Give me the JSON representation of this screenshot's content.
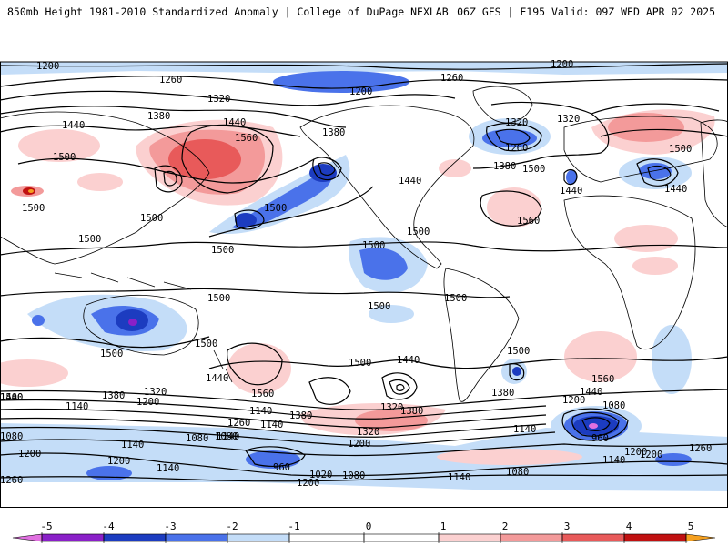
{
  "header": {
    "left_title": "850mb Height 1981-2010 Standardized Anomaly | College of DuPage NEXLAB",
    "right_title": "06Z GFS | F195 Valid: 09Z WED APR 02 2025"
  },
  "colors": {
    "neg5": "#e070e0",
    "neg4": "#8a20c8",
    "neg3": "#1c3cc0",
    "neg2": "#4a72ea",
    "neg1": "#c4ddf8",
    "pos1": "#fbd0d0",
    "pos2": "#f39a9a",
    "pos3": "#e85a5a",
    "pos4": "#c01010",
    "pos5": "#f5a020",
    "land": "#000000"
  },
  "legend": {
    "ticks": [
      "-5",
      "-4",
      "-3",
      "-2",
      "-1",
      "0",
      "1",
      "2",
      "3",
      "4",
      "5"
    ],
    "values": [
      -5,
      -4,
      -3,
      -2,
      -1,
      0,
      1,
      2,
      3,
      4,
      5
    ]
  },
  "contour_labels": [
    {
      "id": "c1200-nw",
      "text": "1200"
    },
    {
      "id": "c1200-ne",
      "text": "1200"
    },
    {
      "id": "c1260-nw",
      "text": "1260"
    },
    {
      "id": "c1320-nw",
      "text": "1320"
    },
    {
      "id": "c1380-nw",
      "text": "1380"
    },
    {
      "id": "c1440-nw",
      "text": "1440"
    },
    {
      "id": "c1440-w",
      "text": "1440"
    },
    {
      "id": "c1500-w",
      "text": "1500"
    },
    {
      "id": "c1560-np",
      "text": "1560"
    },
    {
      "id": "c1380-np",
      "text": "1380"
    },
    {
      "id": "c1200-arctic",
      "text": "1200"
    },
    {
      "id": "c1260-arctic",
      "text": "1260"
    },
    {
      "id": "c1320-eu",
      "text": "1320"
    },
    {
      "id": "c1260-eu",
      "text": "1260"
    },
    {
      "id": "c1320-ne2",
      "text": "1320"
    },
    {
      "id": "c1380-us",
      "text": "1380"
    },
    {
      "id": "c1500-us",
      "text": "1500"
    },
    {
      "id": "c1440-atl",
      "text": "1440"
    },
    {
      "id": "c1500-asia",
      "text": "1500"
    },
    {
      "id": "c1440-asia",
      "text": "1440"
    },
    {
      "id": "c1440-usa",
      "text": "1440"
    },
    {
      "id": "c1500-gulf",
      "text": "1500"
    },
    {
      "id": "c1560-atl",
      "text": "1560"
    },
    {
      "id": "c1500-pac",
      "text": "1500"
    },
    {
      "id": "c1500-china",
      "text": "1500"
    },
    {
      "id": "c1500-wpac",
      "text": "1500"
    },
    {
      "id": "c1500-ind",
      "text": "1500"
    },
    {
      "id": "c1500-tpac",
      "text": "1500"
    },
    {
      "id": "c1500-epac",
      "text": "1500"
    },
    {
      "id": "c1500-ca",
      "text": "1500"
    },
    {
      "id": "c1500-sam",
      "text": "1500"
    },
    {
      "id": "c1500-aus",
      "text": "1500"
    },
    {
      "id": "c1500-aus2",
      "text": "1500"
    },
    {
      "id": "c1500-ind2",
      "text": "1500"
    },
    {
      "id": "c1500-satl",
      "text": "1500"
    },
    {
      "id": "c1500-spac",
      "text": "1500"
    },
    {
      "id": "c1440-spac",
      "text": "1440"
    },
    {
      "id": "c1440-spac2",
      "text": "1440"
    },
    {
      "id": "c1380-spac",
      "text": "1380"
    },
    {
      "id": "c1440-tas",
      "text": "1440"
    },
    {
      "id": "c1560-tas",
      "text": "1560"
    },
    {
      "id": "c1560-satl",
      "text": "1560"
    },
    {
      "id": "c1440-satl",
      "text": "1440"
    },
    {
      "id": "c1380-satl",
      "text": "1380"
    },
    {
      "id": "c1320-satl",
      "text": "1320"
    },
    {
      "id": "c1200-satl",
      "text": "1200"
    },
    {
      "id": "c1140-satl",
      "text": "1140"
    },
    {
      "id": "c1080-satl",
      "text": "1080"
    },
    {
      "id": "c960-satl",
      "text": "960"
    },
    {
      "id": "c1200-satl2",
      "text": "1200"
    },
    {
      "id": "c1260-satl",
      "text": "1260"
    },
    {
      "id": "c1140-satl2",
      "text": "1140"
    },
    {
      "id": "c1080-satl2",
      "text": "1080"
    },
    {
      "id": "c1140-sam",
      "text": "1140"
    },
    {
      "id": "c1380-so",
      "text": "1380"
    },
    {
      "id": "c1320-so",
      "text": "1320"
    },
    {
      "id": "c1260-so",
      "text": "1260"
    },
    {
      "id": "c1200-so",
      "text": "1200"
    },
    {
      "id": "c1140-so",
      "text": "1140"
    },
    {
      "id": "c1500-sw",
      "text": "1500"
    },
    {
      "id": "c1380-sw",
      "text": "1380"
    },
    {
      "id": "c1320-sw",
      "text": "1320"
    },
    {
      "id": "c1200-sw",
      "text": "1200"
    },
    {
      "id": "c1140-sw",
      "text": "1140"
    },
    {
      "id": "c1080-sw",
      "text": "1080"
    },
    {
      "id": "c1200-sw2",
      "text": "1200"
    },
    {
      "id": "c1260-sw",
      "text": "1260"
    },
    {
      "id": "c1140-sw2",
      "text": "1140"
    },
    {
      "id": "c1080-sw2",
      "text": "1080"
    },
    {
      "id": "c1200-sw3",
      "text": "1200"
    },
    {
      "id": "c1140-sw3",
      "text": "1140"
    },
    {
      "id": "c960-sw",
      "text": "960"
    },
    {
      "id": "c1020-sw",
      "text": "1020"
    },
    {
      "id": "c1080-sw3",
      "text": "1080"
    },
    {
      "id": "c1200-sw4",
      "text": "1200"
    },
    {
      "id": "c1140-sw4",
      "text": "1140"
    },
    {
      "id": "c1080-sw4",
      "text": "1080"
    },
    {
      "id": "c1140-sw5",
      "text": "1140"
    },
    {
      "id": "c1200-se",
      "text": "1200"
    }
  ]
}
